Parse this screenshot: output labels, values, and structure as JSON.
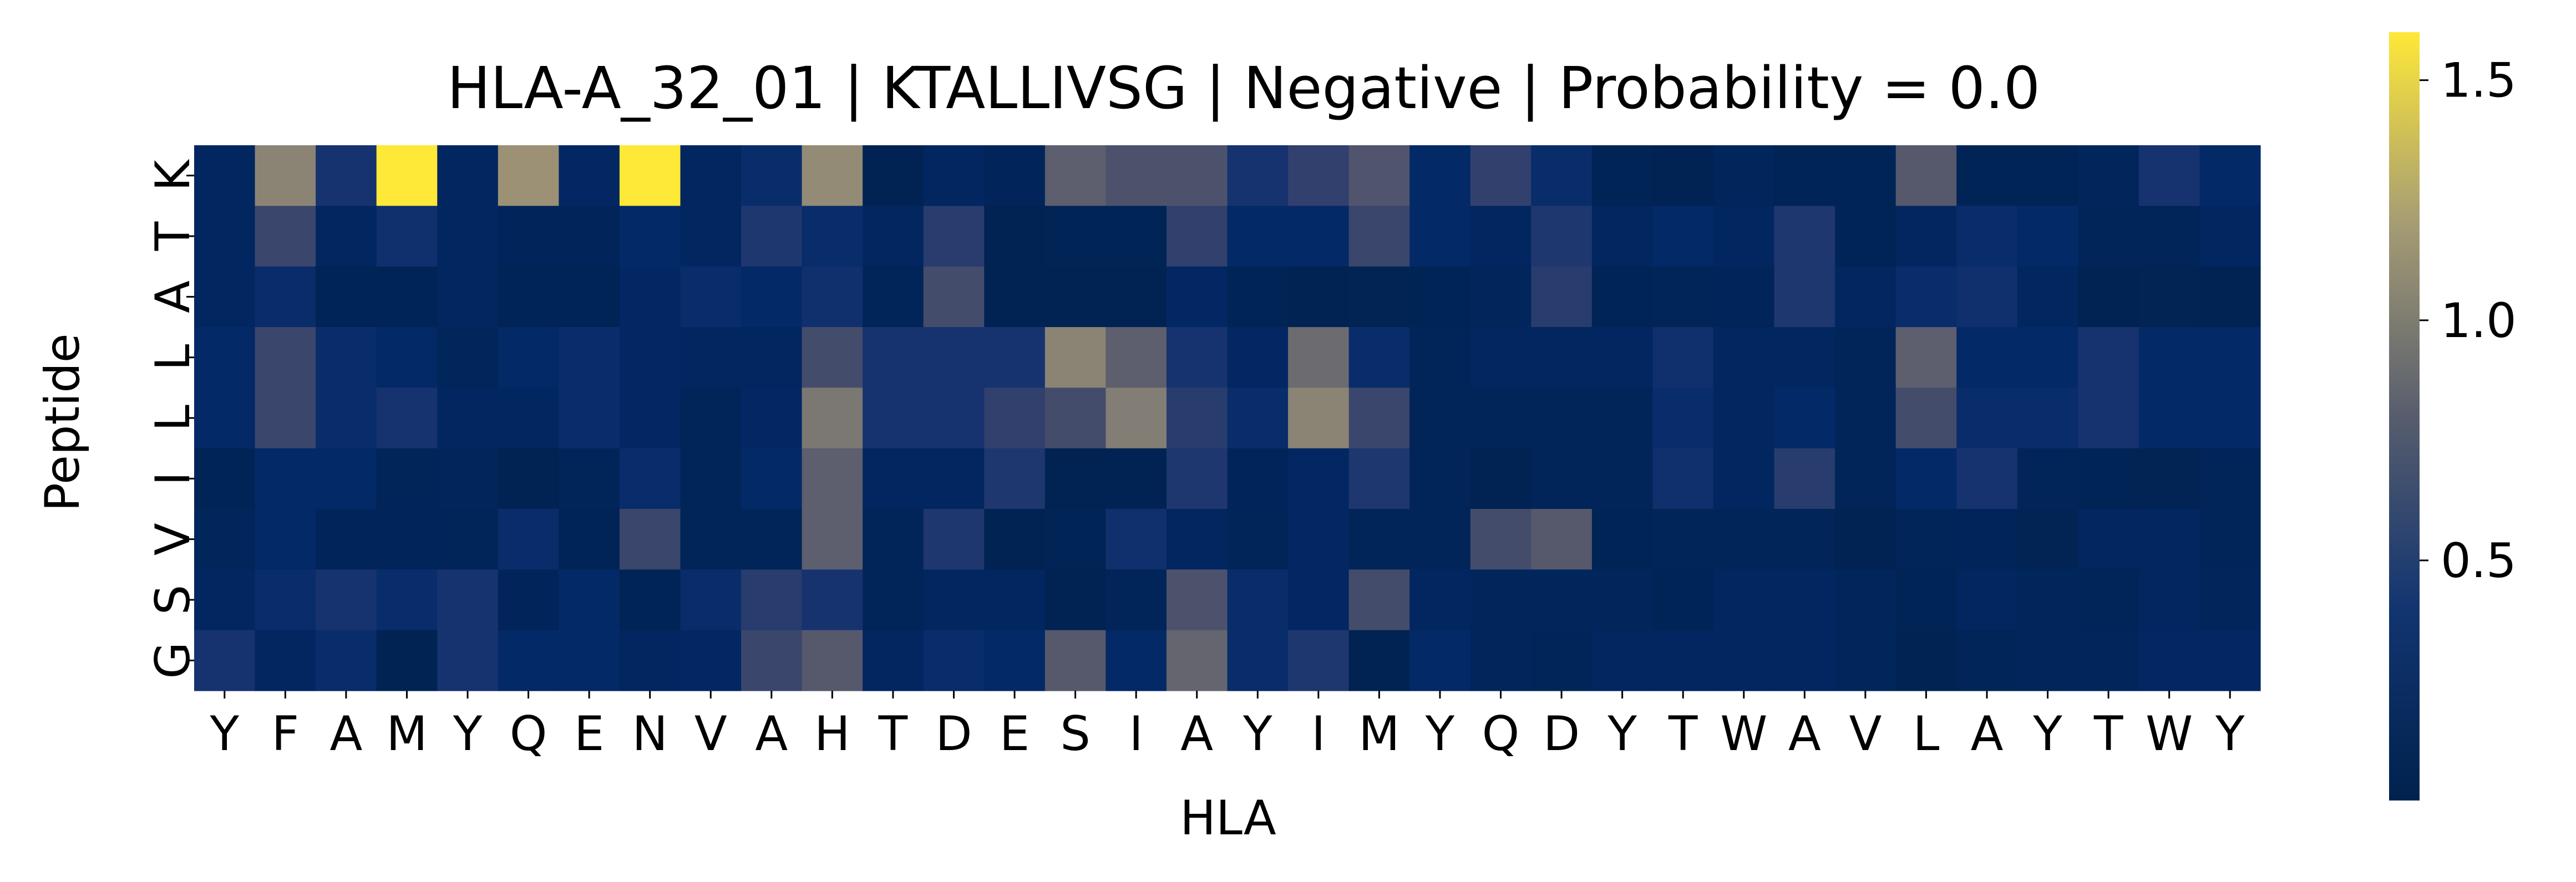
{
  "chart_data": {
    "type": "heatmap",
    "title": "HLA-A_32_01 | KTALLIVSG | Negative | Probability = 0.0",
    "xlabel": "HLA",
    "ylabel": "Peptide",
    "x_categories": [
      "Y",
      "F",
      "A",
      "M",
      "Y",
      "Q",
      "E",
      "N",
      "V",
      "A",
      "H",
      "T",
      "D",
      "E",
      "S",
      "I",
      "A",
      "Y",
      "I",
      "M",
      "Y",
      "Q",
      "D",
      "Y",
      "T",
      "W",
      "A",
      "V",
      "L",
      "A",
      "Y",
      "T",
      "W",
      "Y"
    ],
    "y_categories": [
      "K",
      "T",
      "A",
      "L",
      "L",
      "I",
      "V",
      "S",
      "G"
    ],
    "colormap": "cividis",
    "colorbar": {
      "vmin": 0.0,
      "vmax": 1.6,
      "ticks": [
        0.5,
        1.0,
        1.5
      ],
      "tick_labels": [
        "0.5",
        "1.0",
        "1.5"
      ]
    },
    "values": [
      [
        0.1,
        1.0,
        0.3,
        1.6,
        0.1,
        1.1,
        0.12,
        1.6,
        0.1,
        0.2,
        1.05,
        0.03,
        0.1,
        0.07,
        0.7,
        0.6,
        0.6,
        0.3,
        0.45,
        0.62,
        0.15,
        0.45,
        0.2,
        0.05,
        0.03,
        0.08,
        0.05,
        0.05,
        0.65,
        0.05,
        0.05,
        0.08,
        0.3,
        0.15
      ],
      [
        0.1,
        0.5,
        0.1,
        0.25,
        0.1,
        0.07,
        0.07,
        0.15,
        0.1,
        0.35,
        0.2,
        0.1,
        0.4,
        0.03,
        0.05,
        0.05,
        0.45,
        0.15,
        0.15,
        0.5,
        0.15,
        0.1,
        0.35,
        0.1,
        0.15,
        0.1,
        0.35,
        0.05,
        0.1,
        0.2,
        0.15,
        0.06,
        0.06,
        0.1
      ],
      [
        0.1,
        0.2,
        0.05,
        0.05,
        0.1,
        0.05,
        0.05,
        0.12,
        0.2,
        0.15,
        0.25,
        0.06,
        0.55,
        0.03,
        0.03,
        0.03,
        0.12,
        0.05,
        0.03,
        0.04,
        0.05,
        0.08,
        0.4,
        0.05,
        0.06,
        0.07,
        0.35,
        0.1,
        0.2,
        0.25,
        0.1,
        0.03,
        0.04,
        0.03
      ],
      [
        0.15,
        0.5,
        0.2,
        0.15,
        0.08,
        0.15,
        0.2,
        0.12,
        0.1,
        0.1,
        0.55,
        0.3,
        0.3,
        0.3,
        1.0,
        0.7,
        0.3,
        0.12,
        0.8,
        0.2,
        0.06,
        0.1,
        0.1,
        0.1,
        0.25,
        0.1,
        0.1,
        0.06,
        0.7,
        0.15,
        0.15,
        0.3,
        0.15,
        0.15
      ],
      [
        0.15,
        0.5,
        0.2,
        0.3,
        0.1,
        0.1,
        0.2,
        0.12,
        0.06,
        0.12,
        0.9,
        0.3,
        0.3,
        0.45,
        0.55,
        0.95,
        0.4,
        0.2,
        1.0,
        0.5,
        0.06,
        0.06,
        0.06,
        0.06,
        0.2,
        0.1,
        0.15,
        0.06,
        0.55,
        0.2,
        0.2,
        0.3,
        0.15,
        0.15
      ],
      [
        0.05,
        0.15,
        0.15,
        0.06,
        0.08,
        0.03,
        0.06,
        0.2,
        0.06,
        0.15,
        0.7,
        0.1,
        0.1,
        0.35,
        0.03,
        0.03,
        0.35,
        0.07,
        0.12,
        0.35,
        0.06,
        0.03,
        0.06,
        0.06,
        0.25,
        0.1,
        0.4,
        0.06,
        0.15,
        0.3,
        0.06,
        0.05,
        0.04,
        0.06
      ],
      [
        0.08,
        0.15,
        0.07,
        0.07,
        0.06,
        0.2,
        0.05,
        0.5,
        0.06,
        0.06,
        0.7,
        0.06,
        0.35,
        0.03,
        0.05,
        0.25,
        0.1,
        0.06,
        0.12,
        0.06,
        0.06,
        0.55,
        0.65,
        0.05,
        0.06,
        0.06,
        0.06,
        0.03,
        0.06,
        0.07,
        0.04,
        0.1,
        0.1,
        0.06
      ],
      [
        0.1,
        0.2,
        0.3,
        0.2,
        0.3,
        0.07,
        0.15,
        0.05,
        0.2,
        0.4,
        0.3,
        0.06,
        0.1,
        0.1,
        0.03,
        0.06,
        0.6,
        0.2,
        0.12,
        0.55,
        0.1,
        0.08,
        0.08,
        0.08,
        0.05,
        0.1,
        0.1,
        0.08,
        0.05,
        0.1,
        0.08,
        0.06,
        0.1,
        0.08
      ],
      [
        0.3,
        0.1,
        0.2,
        0.03,
        0.3,
        0.15,
        0.15,
        0.1,
        0.12,
        0.5,
        0.65,
        0.1,
        0.2,
        0.15,
        0.65,
        0.15,
        0.75,
        0.2,
        0.35,
        0.03,
        0.15,
        0.08,
        0.06,
        0.1,
        0.1,
        0.1,
        0.1,
        0.08,
        0.03,
        0.06,
        0.08,
        0.08,
        0.12,
        0.12
      ]
    ]
  }
}
